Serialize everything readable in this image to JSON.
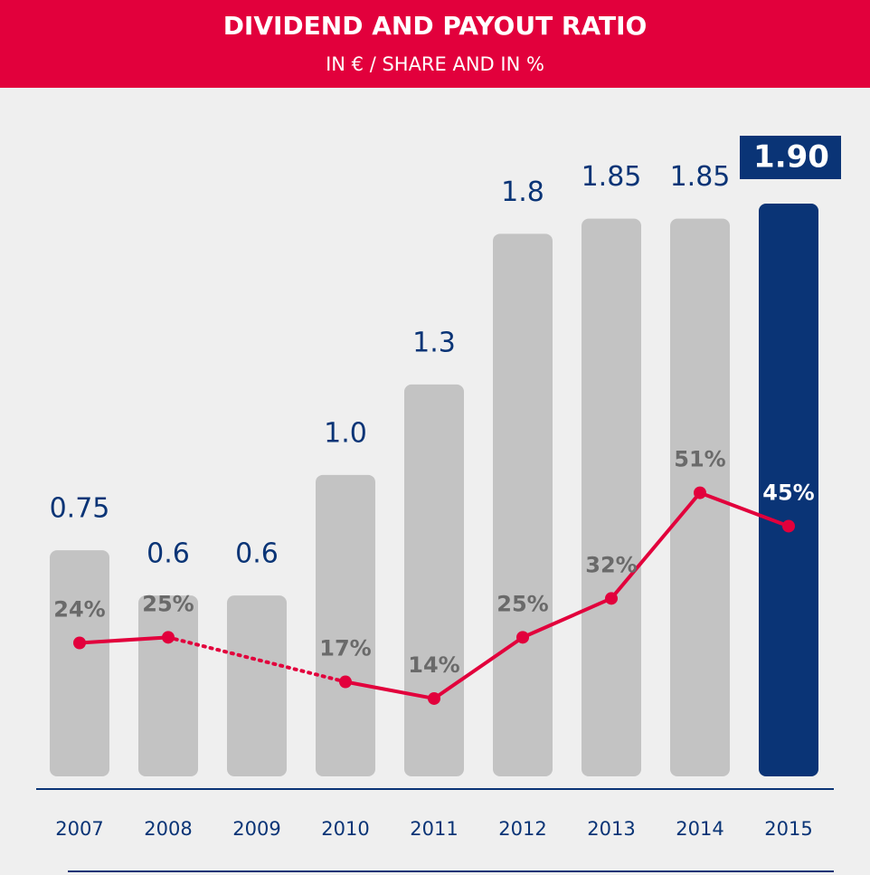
{
  "chart_data": {
    "type": "bar",
    "title": "DIVIDEND AND PAYOUT RATIO",
    "subtitle": "IN € / SHARE AND IN %",
    "categories": [
      "2007",
      "2008",
      "2009",
      "2010",
      "2011",
      "2012",
      "2013",
      "2014",
      "2015"
    ],
    "series": [
      {
        "type": "bar",
        "values": [
          0.75,
          0.6,
          0.6,
          1.0,
          1.3,
          1.8,
          1.85,
          1.85,
          1.9
        ],
        "value_labels": [
          "0.75",
          "0.6",
          "0.6",
          "1.0",
          "1.3",
          "1.8",
          "1.85",
          "1.85",
          "1.90"
        ],
        "colors": [
          "#c3c3c3",
          "#c3c3c3",
          "#c3c3c3",
          "#c3c3c3",
          "#c3c3c3",
          "#c3c3c3",
          "#c3c3c3",
          "#c3c3c3",
          "#0a3476"
        ]
      },
      {
        "type": "line",
        "axis": "y2",
        "color": "#e2003c",
        "values": [
          24,
          25,
          null,
          17,
          14,
          25,
          32,
          51,
          45
        ],
        "value_labels": [
          "24%",
          "25%",
          null,
          "17%",
          "14%",
          "25%",
          "32%",
          "51%",
          "45%"
        ]
      }
    ],
    "ylim": [
      0,
      1.9
    ],
    "y2lim": [
      0,
      103
    ]
  }
}
